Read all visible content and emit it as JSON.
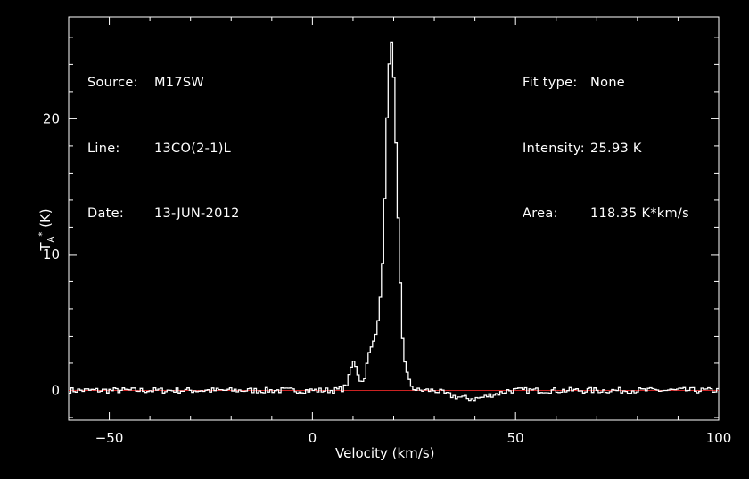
{
  "info": {
    "source_key": "Source:",
    "source_val": "M17SW",
    "line_key": "Line:",
    "line_val": "13CO(2-1)L",
    "date_key": "Date:",
    "date_val": "13-JUN-2012",
    "fit_key": "Fit type:",
    "fit_val": "None",
    "intensity_key": "Intensity:",
    "intensity_val": "25.93 K",
    "area_key": "Area:",
    "area_val": "118.35 K*km/s"
  },
  "colors": {
    "background": "#000000",
    "spectrum": "#ffffff",
    "baseline": "#cc2222"
  },
  "chart_data": {
    "type": "line",
    "title": "",
    "xlabel": "Velocity (km/s)",
    "ylabel": "T*A (K)",
    "xlim": [
      -60,
      100
    ],
    "ylim": [
      -2.2,
      27.5
    ],
    "x_ticks": [
      -50,
      0,
      50,
      100
    ],
    "y_ticks": [
      0,
      10,
      20
    ],
    "x_tick_labels": [
      "−50",
      "0",
      "50",
      "100"
    ],
    "y_tick_labels": [
      "0",
      "10",
      "20"
    ],
    "baseline": 0,
    "series": [
      {
        "x": [
          -60,
          -55,
          -50,
          -45,
          -40,
          -35,
          -30,
          -25,
          -20,
          -15,
          -10,
          -5,
          0,
          5,
          7,
          8,
          9,
          9.5,
          10,
          10.5,
          11,
          11.5,
          12,
          12.5,
          13,
          13.5,
          14,
          14.5,
          15,
          15.5,
          16,
          16.5,
          17,
          17.5,
          18,
          18.5,
          19,
          19.5,
          20,
          20.5,
          21,
          21.5,
          22,
          22.5,
          23,
          23.5,
          24,
          24.5,
          25,
          25.5,
          26,
          27,
          28,
          30,
          32,
          34,
          36,
          38,
          40,
          42,
          44,
          46,
          48,
          50,
          55,
          60,
          65,
          70,
          75,
          80,
          85,
          90,
          95,
          100
        ],
        "y": [
          0,
          0,
          0,
          0,
          0,
          0,
          0,
          0,
          0,
          0,
          0,
          0,
          0,
          0,
          0.1,
          0.3,
          1.2,
          2,
          2.1,
          1.8,
          1.2,
          0.8,
          0.6,
          0.9,
          1.6,
          2.5,
          3,
          3.2,
          3.9,
          4.5,
          5.5,
          6.8,
          9.5,
          13.5,
          19,
          23.5,
          25.93,
          24.8,
          21,
          16,
          11,
          7,
          3.5,
          2.2,
          1.3,
          0.7,
          0.4,
          0.2,
          0.1,
          0,
          0,
          0,
          0,
          0,
          -0.2,
          -0.4,
          -0.5,
          -0.6,
          -0.6,
          -0.5,
          -0.3,
          -0.2,
          0,
          0,
          0,
          0,
          0,
          0,
          0,
          0,
          0,
          0,
          0,
          0
        ]
      }
    ]
  }
}
